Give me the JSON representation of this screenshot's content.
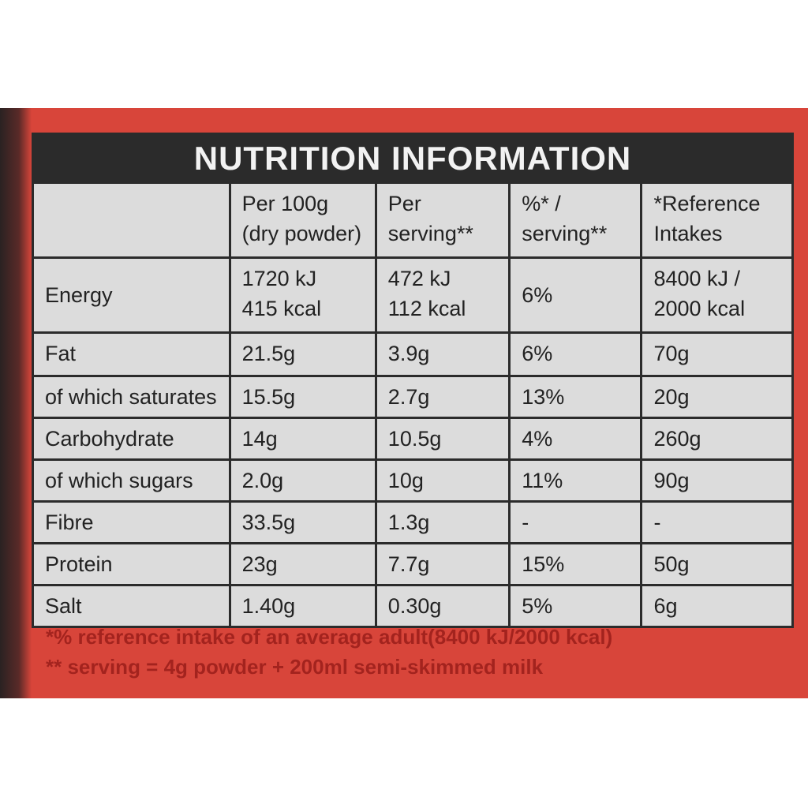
{
  "header": {
    "title": "NUTRITION INFORMATION"
  },
  "table": {
    "columns": [
      "",
      "Per 100g\n(dry powder)",
      "Per\nserving**",
      "%* /\nserving**",
      "*Reference\nIntakes"
    ],
    "rows": [
      [
        "Energy",
        "1720 kJ\n415 kcal",
        "472 kJ\n112 kcal",
        "6%",
        "8400 kJ /\n2000 kcal"
      ],
      [
        "Fat",
        "21.5g",
        "3.9g",
        "6%",
        "70g"
      ],
      [
        "of which saturates",
        "15.5g",
        "2.7g",
        "13%",
        "20g"
      ],
      [
        "Carbohydrate",
        "14g",
        "10.5g",
        "4%",
        "260g"
      ],
      [
        "of which sugars",
        "2.0g",
        "10g",
        "11%",
        "90g"
      ],
      [
        "Fibre",
        "33.5g",
        "1.3g",
        "-",
        "-"
      ],
      [
        "Protein",
        "23g",
        "7.7g",
        "15%",
        "50g"
      ],
      [
        "Salt",
        "1.40g",
        "0.30g",
        "5%",
        "6g"
      ]
    ]
  },
  "footnotes": [
    "*% reference intake of an average adult(8400 kJ/2000 kcal)",
    "** serving = 4g powder + 200ml semi-skimmed milk"
  ]
}
